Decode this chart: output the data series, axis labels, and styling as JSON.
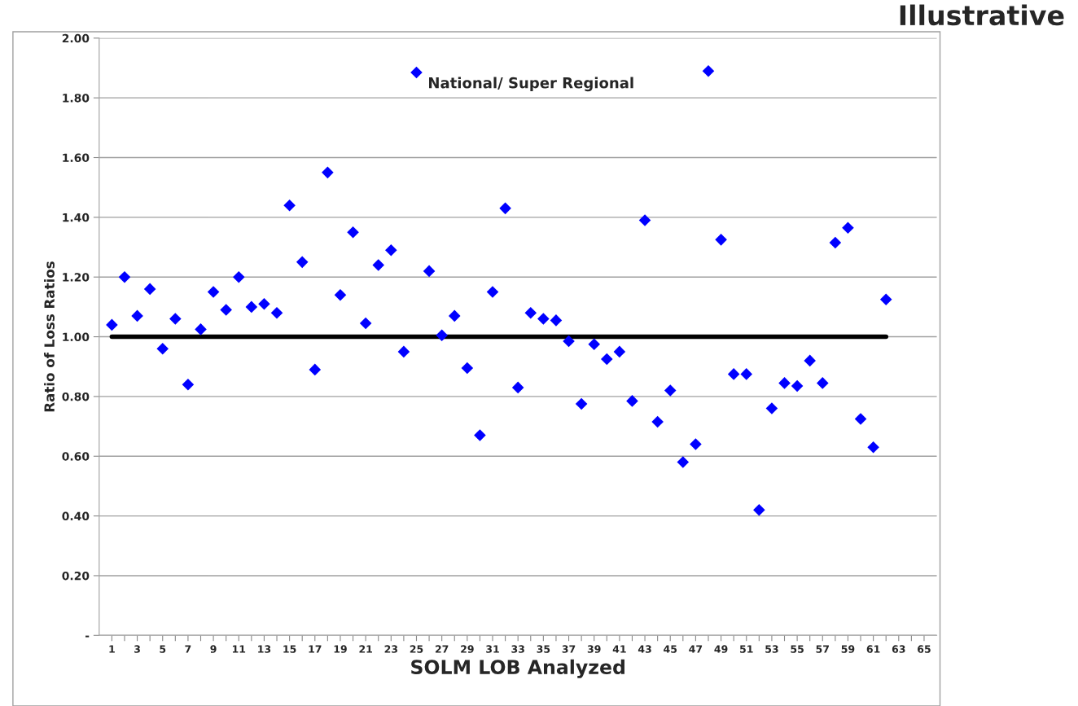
{
  "chart_data": {
    "type": "scatter",
    "xlabel": "SOLM LOB Analyzed",
    "ylabel": "Ratio of Loss Ratios",
    "annotations": [
      "Illustrative",
      {
        "text": "National/ Super Regional",
        "x": 25,
        "y": 1.885
      }
    ],
    "series": [
      {
        "color": "#0000ff",
        "marker": "diamond",
        "x": [
          1,
          2,
          3,
          4,
          5,
          6,
          7,
          8,
          9,
          10,
          11,
          12,
          13,
          14,
          15,
          16,
          17,
          18,
          19,
          20,
          21,
          22,
          23,
          24,
          25,
          26,
          27,
          28,
          29,
          30,
          31,
          32,
          33,
          34,
          35,
          36,
          37,
          38,
          39,
          40,
          41,
          42,
          43,
          44,
          45,
          46,
          47,
          48,
          49,
          50,
          51,
          52,
          53,
          54,
          55,
          56,
          57,
          58,
          59,
          60,
          61,
          62
        ],
        "values": [
          1.04,
          1.2,
          1.07,
          1.16,
          0.96,
          1.06,
          0.84,
          1.025,
          1.15,
          1.09,
          1.2,
          1.1,
          1.11,
          1.08,
          1.44,
          1.25,
          0.89,
          1.55,
          1.14,
          1.35,
          1.045,
          1.24,
          1.29,
          0.95,
          1.885,
          1.22,
          1.005,
          1.07,
          0.895,
          0.67,
          1.15,
          1.43,
          0.83,
          1.08,
          1.06,
          1.055,
          0.985,
          0.775,
          0.975,
          0.925,
          0.95,
          0.785,
          1.39,
          0.715,
          0.82,
          0.58,
          0.64,
          1.89,
          1.325,
          0.875,
          0.875,
          0.42,
          0.76,
          0.845,
          0.835,
          0.92,
          0.845,
          1.315,
          1.365,
          0.725,
          0.63,
          1.125
        ]
      },
      {
        "type": "line",
        "color": "#000000",
        "marker": "none",
        "line_style": "solid",
        "x": [
          1,
          62
        ],
        "values": [
          1.0,
          1.0
        ]
      }
    ],
    "xlim": [
      0,
      66
    ],
    "xticks": [
      1,
      {
        "value": 2,
        "label": null
      },
      3,
      {
        "value": 4,
        "label": null
      },
      5,
      {
        "value": 6,
        "label": null
      },
      7,
      {
        "value": 8,
        "label": null
      },
      9,
      {
        "value": 10,
        "label": null
      },
      11,
      {
        "value": 12,
        "label": null
      },
      13,
      {
        "value": 14,
        "label": null
      },
      15,
      {
        "value": 16,
        "label": null
      },
      17,
      {
        "value": 18,
        "label": null
      },
      19,
      {
        "value": 20,
        "label": null
      },
      21,
      {
        "value": 22,
        "label": null
      },
      23,
      {
        "value": 24,
        "label": null
      },
      25,
      {
        "value": 26,
        "label": null
      },
      27,
      {
        "value": 28,
        "label": null
      },
      29,
      {
        "value": 30,
        "label": null
      },
      31,
      {
        "value": 32,
        "label": null
      },
      33,
      {
        "value": 34,
        "label": null
      },
      35,
      {
        "value": 36,
        "label": null
      },
      37,
      {
        "value": 38,
        "label": null
      },
      39,
      {
        "value": 40,
        "label": null
      },
      41,
      {
        "value": 42,
        "label": null
      },
      43,
      {
        "value": 44,
        "label": null
      },
      45,
      {
        "value": 46,
        "label": null
      },
      47,
      {
        "value": 48,
        "label": null
      },
      49,
      {
        "value": 50,
        "label": null
      },
      51,
      {
        "value": 52,
        "label": null
      },
      53,
      {
        "value": 54,
        "label": null
      },
      55,
      {
        "value": 56,
        "label": null
      },
      57,
      {
        "value": 58,
        "label": null
      },
      59,
      {
        "value": 60,
        "label": null
      },
      61,
      {
        "value": 62,
        "label": null
      },
      63,
      {
        "value": 64,
        "label": null
      },
      65
    ],
    "ylim": [
      0,
      2.0
    ],
    "yticks": [
      {
        "value": 0,
        "label": "-"
      },
      {
        "value": 0.2,
        "label": "0.20"
      },
      {
        "value": 0.4,
        "label": "0.40"
      },
      {
        "value": 0.6,
        "label": "0.60"
      },
      {
        "value": 0.8,
        "label": "0.80"
      },
      {
        "value": 1.0,
        "label": "1.00"
      },
      {
        "value": 1.2,
        "label": "1.20"
      },
      {
        "value": 1.4,
        "label": "1.40"
      },
      {
        "value": 1.6,
        "label": "1.60"
      },
      {
        "value": 1.8,
        "label": "1.80"
      },
      {
        "value": 2.0,
        "label": "2.00"
      }
    ],
    "grid": "y",
    "legend": false
  }
}
